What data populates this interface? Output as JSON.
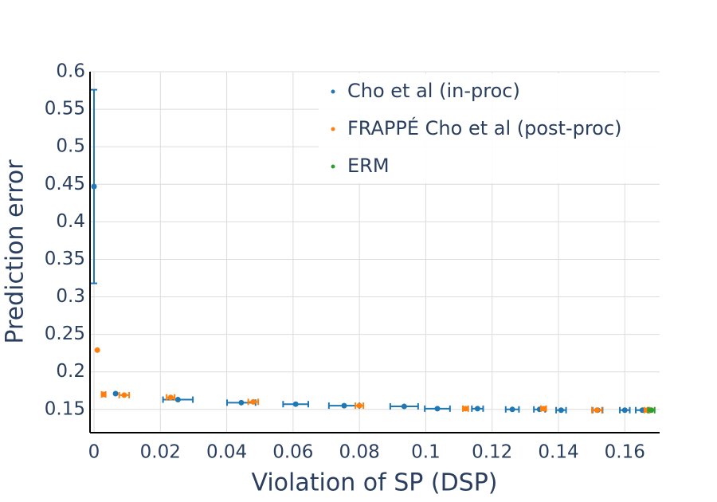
{
  "chart_data": {
    "type": "scatter",
    "x_label": "Violation of SP (DSP)",
    "y_label": "Prediction error",
    "xlim": [
      -0.0012,
      0.1705
    ],
    "ylim": [
      0.119,
      0.6
    ],
    "xticks": [
      0,
      0.02,
      0.04,
      0.06,
      0.08,
      0.1,
      0.12,
      0.14,
      0.16
    ],
    "yticks": [
      0.15,
      0.2,
      0.25,
      0.3,
      0.35,
      0.4,
      0.45,
      0.5,
      0.55,
      0.6
    ],
    "grid": true,
    "legend": "top-right",
    "series": [
      {
        "name": "Cho et al (in-proc)",
        "color": "#1f77b4",
        "x": [
          0.0,
          0.0065,
          0.0253,
          0.0444,
          0.0608,
          0.0754,
          0.0935,
          0.1035,
          0.1156,
          0.1261,
          0.1343,
          0.1408,
          0.1518,
          0.16,
          0.1653
        ],
        "values": [
          0.447,
          0.171,
          0.163,
          0.159,
          0.157,
          0.155,
          0.154,
          0.151,
          0.151,
          0.15,
          0.15,
          0.149,
          0.149,
          0.149,
          0.149
        ],
        "xerr": [
          null,
          null,
          0.0045,
          0.0043,
          0.0038,
          0.0046,
          0.0042,
          0.0038,
          0.0017,
          0.002,
          0.0017,
          0.0015,
          0.0015,
          0.0015,
          0.002
        ],
        "yerr": [
          0.129,
          null,
          null,
          null,
          null,
          null,
          null,
          null,
          null,
          null,
          null,
          null,
          null,
          null,
          null
        ]
      },
      {
        "name": "FRAPPÉ Cho et al (post-proc)",
        "color": "#ff7f0e",
        "x": [
          0.001,
          0.0029,
          0.0091,
          0.0231,
          0.048,
          0.08,
          0.112,
          0.1355,
          0.1516,
          0.1667
        ],
        "values": [
          0.229,
          0.17,
          0.169,
          0.166,
          0.16,
          0.155,
          0.151,
          0.151,
          0.149,
          0.149
        ],
        "xerr": [
          null,
          0.0006,
          0.0015,
          0.0012,
          0.0015,
          0.0012,
          0.0008,
          0.0008,
          0.0015,
          0.0008
        ],
        "yerr": [
          null,
          null,
          null,
          null,
          null,
          null,
          null,
          null,
          null,
          null
        ]
      },
      {
        "name": "ERM",
        "color": "#2ca02c",
        "x": [
          0.168
        ],
        "values": [
          0.149
        ],
        "xerr": [
          0.001
        ],
        "yerr": [
          null
        ]
      }
    ]
  }
}
